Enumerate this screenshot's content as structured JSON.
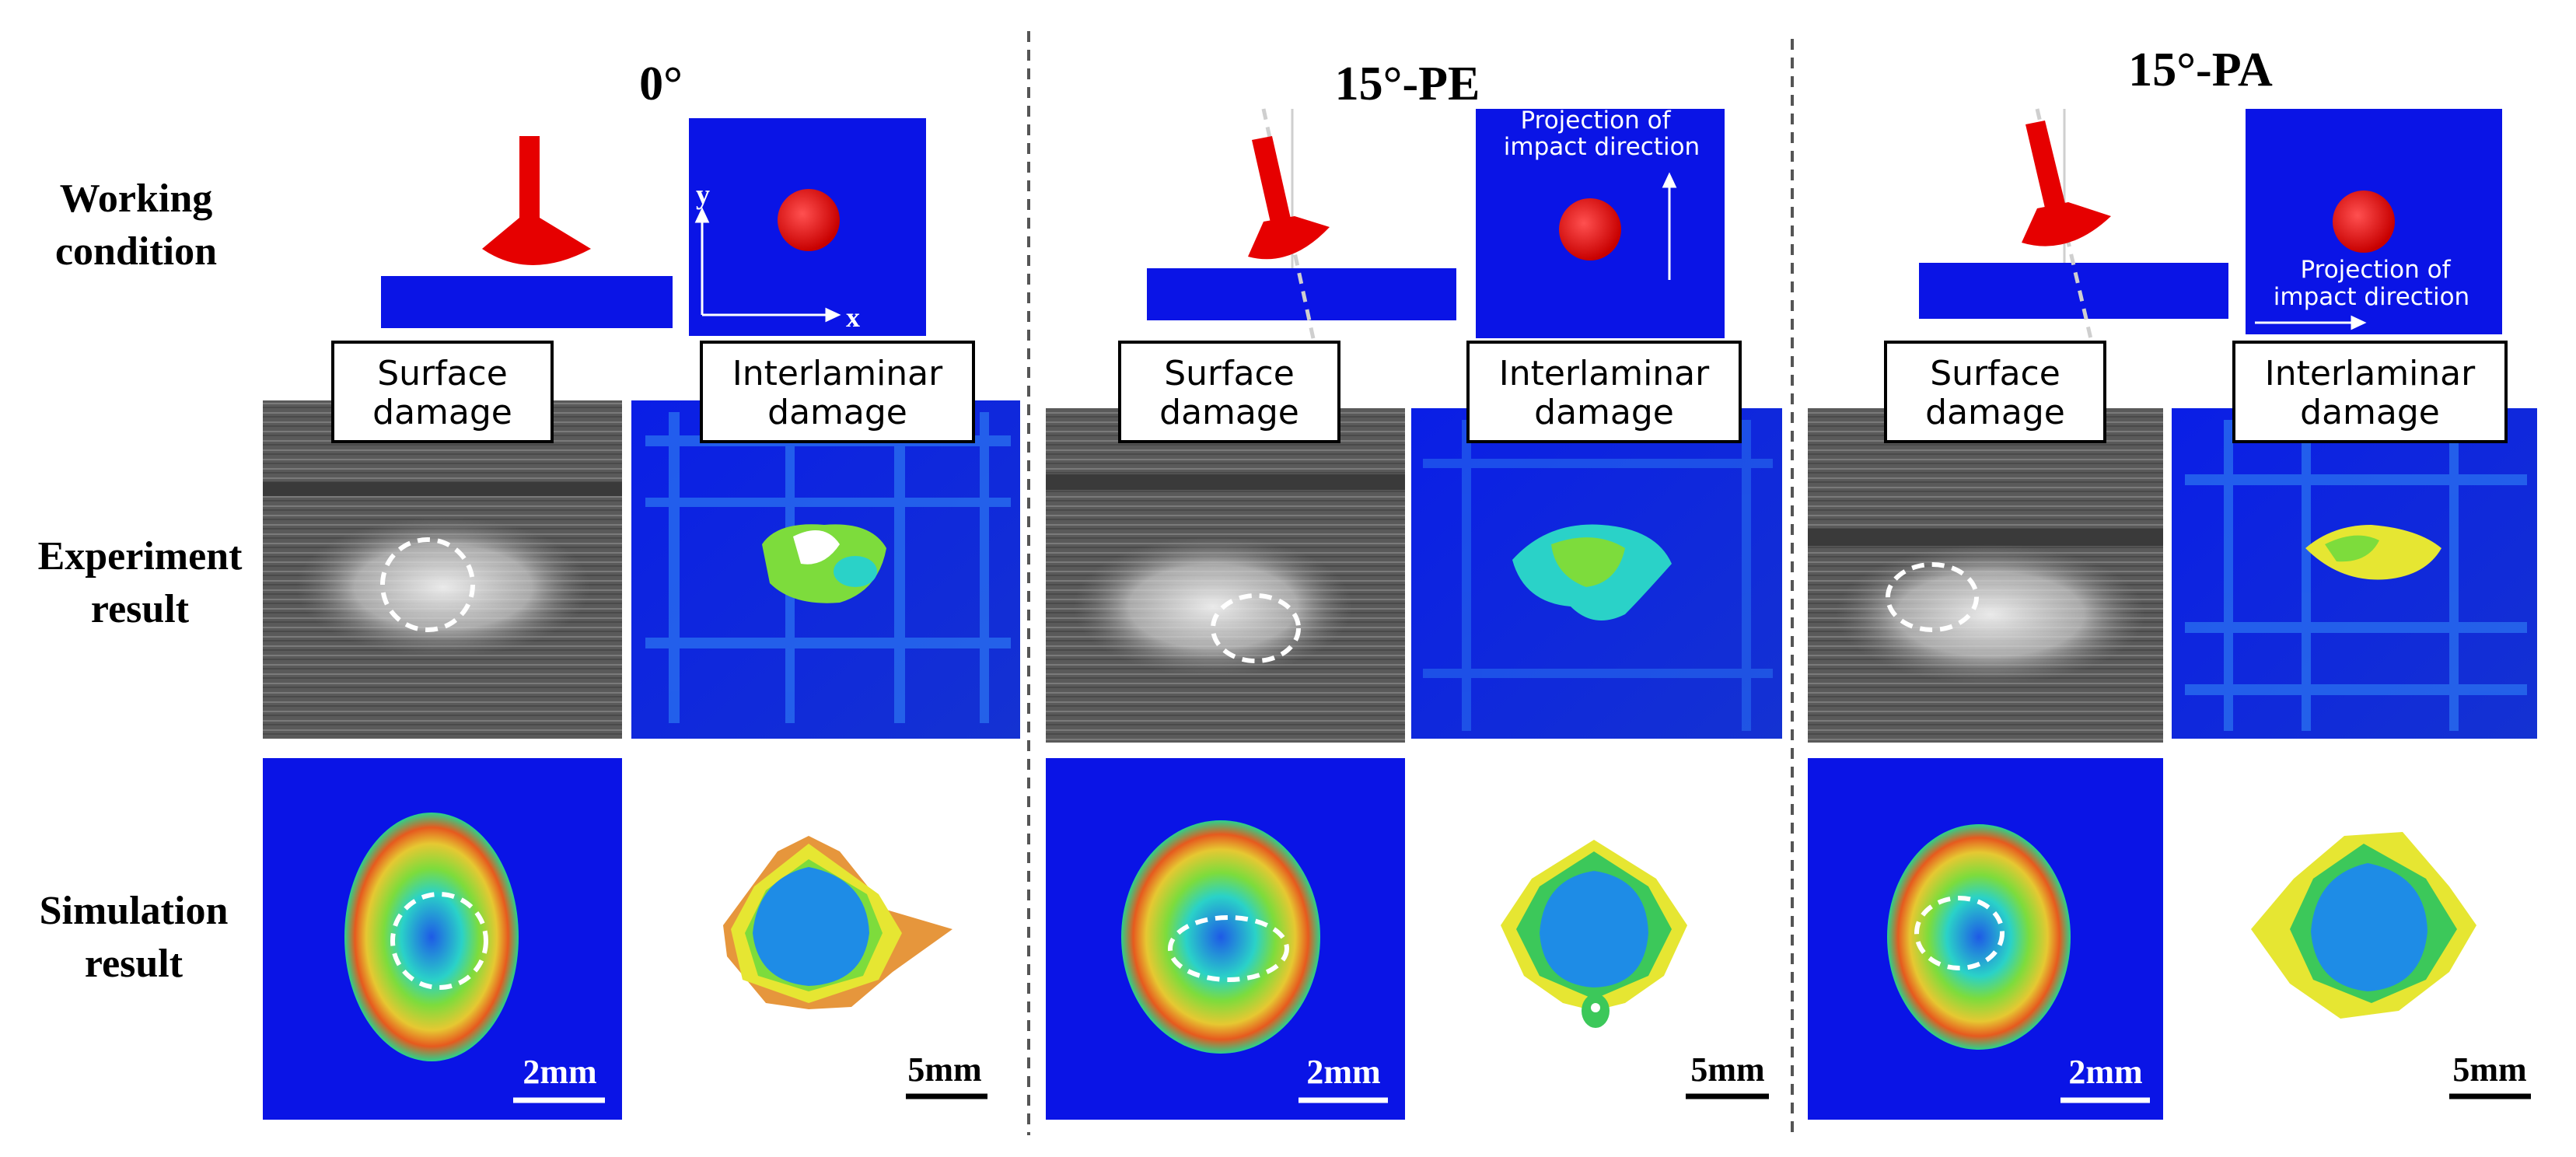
{
  "figure": {
    "columns": [
      {
        "title": "0°",
        "surface_label": [
          "Surface",
          "damage"
        ],
        "interlaminar_label": [
          "Interlaminar",
          "damage"
        ],
        "axis_x": "x",
        "axis_y": "y",
        "sim_surface_scale": "2mm",
        "sim_inter_scale": "5mm"
      },
      {
        "title": "15°-PE",
        "surface_label": [
          "Surface",
          "damage"
        ],
        "interlaminar_label": [
          "Interlaminar",
          "damage"
        ],
        "projection_label": [
          "Projection of",
          "impact direction"
        ],
        "sim_surface_scale": "2mm",
        "sim_inter_scale": "5mm"
      },
      {
        "title": "15°-PA",
        "surface_label": [
          "Surface",
          "damage"
        ],
        "interlaminar_label": [
          "Interlaminar",
          "damage"
        ],
        "projection_label": [
          "Projection of",
          "impact direction"
        ],
        "sim_surface_scale": "2mm",
        "sim_inter_scale": "5mm"
      }
    ],
    "row_labels": {
      "working_condition": [
        "Working",
        "condition"
      ],
      "experiment_result": [
        "Experiment",
        "result"
      ],
      "simulation_result": [
        "Simulation",
        "result"
      ]
    },
    "colors": {
      "panel_blue": "#0a14e6",
      "impactor_red": "#e60000",
      "damage_green": "#7ddc3c",
      "damage_cyan": "#2ad2c8",
      "damage_yellow": "#e6e632",
      "damage_red": "#e63214",
      "inner_blue": "#1e8ce6"
    }
  }
}
